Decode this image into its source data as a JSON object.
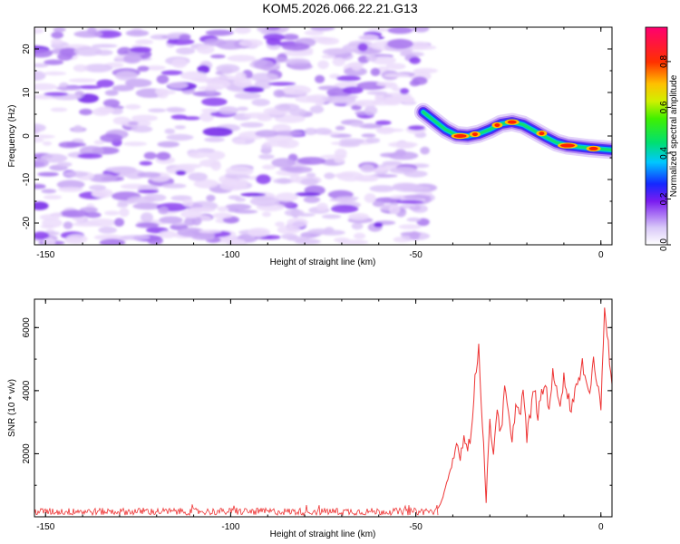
{
  "title": "KOM5.2026.066.22.21.G13",
  "chart_data": [
    {
      "type": "heatmap",
      "panel": "spectrogram",
      "xlabel": "Height of straight line (km)",
      "ylabel": "Frequency (Hz)",
      "xlim": [
        -153,
        3
      ],
      "ylim": [
        -25,
        25
      ],
      "xticks": [
        -150,
        -100,
        -50,
        0
      ],
      "yticks": [
        -20,
        -10,
        0,
        10,
        20
      ],
      "colorbar": {
        "label": "Normalized spectral amplitude",
        "range": [
          0,
          0.95
        ],
        "ticks": [
          0.0,
          0.2,
          0.4,
          0.6,
          0.8
        ]
      },
      "signal_track": {
        "height_km": [
          -48,
          -45,
          -42,
          -39,
          -36,
          -33,
          -30,
          -27,
          -24,
          -21,
          -18,
          -15,
          -12,
          -9,
          -6,
          -3,
          0,
          3
        ],
        "frequency_hz": [
          5.5,
          3.5,
          1.5,
          0.2,
          0.0,
          0.5,
          1.5,
          2.8,
          3.2,
          2.6,
          1.2,
          -0.2,
          -1.5,
          -2.2,
          -2.5,
          -2.8,
          -3.0,
          -3.2
        ]
      },
      "noise_region_km": [
        -153,
        -47
      ]
    },
    {
      "type": "line",
      "panel": "snr",
      "xlabel": "Height of straight line (km)",
      "ylabel": "SNR (10 * v/v)",
      "xlim": [
        -153,
        3
      ],
      "ylim": [
        0,
        6900
      ],
      "xticks": [
        -150,
        -100,
        -50,
        0
      ],
      "yticks": [
        2000,
        4000,
        6000
      ],
      "series": [
        {
          "name": "SNR",
          "color": "#ee3333",
          "x": [
            -153,
            -140,
            -120,
            -100,
            -80,
            -60,
            -50,
            -46,
            -44,
            -43,
            -42,
            -41,
            -40,
            -39,
            -38,
            -37,
            -36,
            -35,
            -34,
            -33,
            -32,
            -31,
            -30,
            -29,
            -28,
            -27,
            -26,
            -25,
            -24,
            -23,
            -22,
            -21,
            -20,
            -19,
            -18,
            -17,
            -16,
            -15,
            -14,
            -13,
            -12,
            -11,
            -10,
            -9,
            -8,
            -7,
            -6,
            -5,
            -4,
            -3,
            -2,
            -1,
            0,
            1,
            2,
            3
          ],
          "y": [
            150,
            160,
            140,
            150,
            145,
            150,
            160,
            180,
            300,
            500,
            900,
            1300,
            1700,
            2300,
            2000,
            2500,
            2300,
            2600,
            4300,
            5400,
            3000,
            650,
            2900,
            2100,
            3500,
            2600,
            4000,
            3300,
            2200,
            3700,
            3200,
            4000,
            2500,
            3300,
            4100,
            3200,
            3900,
            4200,
            3500,
            4500,
            4000,
            3700,
            4400,
            3900,
            3400,
            4100,
            4200,
            4800,
            4500,
            3900,
            5000,
            4200,
            3500,
            6800,
            5400,
            4200
          ]
        }
      ],
      "noise_floor_range": [
        50,
        280
      ]
    }
  ]
}
